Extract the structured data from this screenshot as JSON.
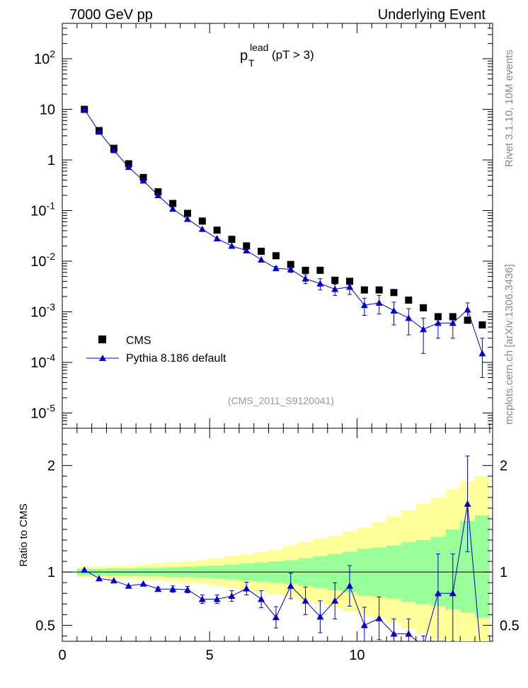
{
  "header": {
    "left": "7000 GeV pp",
    "right": "Underlying Event"
  },
  "side_labels": {
    "rivet": "Rivet 3.1.10,  10M events",
    "mcplots": "mcplots.cern.ch [arXiv:1306.3436]"
  },
  "title": {
    "main": "p",
    "sup": "lead",
    "sub": "T",
    "cut": "(pT >  3)"
  },
  "watermark": "(CMS_2011_S9120041)",
  "ratio_ylabel": "Ratio to CMS",
  "legend": {
    "placement": "lower-left",
    "entries": [
      "CMS",
      "Pythia 8.186 default"
    ]
  },
  "colors": {
    "data": "#000000",
    "mc": "#0000cc",
    "band_inner": "#99ff99",
    "band_outer": "#ffff99",
    "reference_line": "#000000"
  },
  "chart_data": [
    {
      "type": "scatter",
      "panel": "main",
      "yscale": "log",
      "ylim": [
        5e-06,
        500
      ],
      "xlim": [
        0,
        14.6
      ],
      "ytick_labels": [
        "10^-5",
        "10^-4",
        "10^-3",
        "10^-2",
        "10^-1",
        "1",
        "10",
        "10^2"
      ],
      "series": [
        {
          "name": "CMS",
          "marker": "square",
          "x": [
            0.75,
            1.25,
            1.75,
            2.25,
            2.75,
            3.25,
            3.75,
            4.25,
            4.75,
            5.25,
            5.75,
            6.25,
            6.75,
            7.25,
            7.75,
            8.25,
            8.75,
            9.25,
            9.75,
            10.25,
            10.75,
            11.25,
            11.75,
            12.25,
            12.75,
            13.25,
            13.75,
            14.25
          ],
          "y": [
            10,
            3.8,
            1.7,
            0.84,
            0.45,
            0.235,
            0.138,
            0.088,
            0.062,
            0.041,
            0.027,
            0.02,
            0.0157,
            0.0128,
            0.0086,
            0.0066,
            0.0066,
            0.0042,
            0.004,
            0.0027,
            0.0027,
            0.0024,
            0.0017,
            0.0012,
            0.0008,
            0.0008,
            0.00068,
            0.00055
          ]
        },
        {
          "name": "Pythia 8.186 default",
          "marker": "triangle",
          "x": [
            0.75,
            1.25,
            1.75,
            2.25,
            2.75,
            3.25,
            3.75,
            4.25,
            4.75,
            5.25,
            5.75,
            6.25,
            6.75,
            7.25,
            7.75,
            8.25,
            8.75,
            9.25,
            9.75,
            10.25,
            10.75,
            11.25,
            11.75,
            12.25,
            12.75,
            13.25,
            13.75,
            14.25
          ],
          "y": [
            10,
            3.6,
            1.55,
            0.72,
            0.39,
            0.2,
            0.108,
            0.068,
            0.043,
            0.028,
            0.02,
            0.0162,
            0.0107,
            0.0072,
            0.0069,
            0.0045,
            0.0036,
            0.0028,
            0.0031,
            0.00135,
            0.0015,
            0.00105,
            0.00075,
            0.00045,
            0.0006,
            0.0006,
            0.0011,
            0.00015
          ],
          "err_lo": [
            0,
            0,
            0,
            0,
            0,
            0,
            0,
            0,
            0,
            0,
            0,
            0,
            0,
            0.0006,
            0.0009,
            0.0009,
            0.0009,
            0.0007,
            0.0009,
            0.0005,
            0.0006,
            0.0005,
            0.0004,
            0.0003,
            0.0003,
            0.0003,
            0.0005,
            0.0001
          ],
          "err_hi": [
            0,
            0,
            0,
            0,
            0,
            0,
            0,
            0,
            0,
            0,
            0,
            0,
            0,
            0.0006,
            0.0009,
            0.0009,
            0.0009,
            0.0007,
            0.0009,
            0.0005,
            0.0006,
            0.0005,
            0.0004,
            0.0003,
            0.0003,
            0.0003,
            0.0004,
            0.00015
          ]
        }
      ]
    },
    {
      "type": "line",
      "panel": "ratio",
      "ylabel": "Ratio to CMS",
      "ylim": [
        0.35,
        2.35
      ],
      "xlim": [
        0,
        14.6
      ],
      "xticks": [
        0,
        5,
        10
      ],
      "yticks": [
        0.5,
        1,
        2
      ],
      "reference": 1,
      "bands": {
        "x_edges": [
          0.5,
          1,
          1.5,
          2,
          2.5,
          3,
          3.5,
          4,
          4.5,
          5,
          5.5,
          6,
          6.5,
          7,
          7.5,
          8,
          8.5,
          9,
          9.5,
          10,
          10.5,
          11,
          11.5,
          12,
          12.5,
          13,
          13.5,
          14,
          14.5
        ],
        "inner_lo": [
          0.97,
          0.97,
          0.965,
          0.965,
          0.96,
          0.96,
          0.955,
          0.95,
          0.945,
          0.94,
          0.93,
          0.92,
          0.91,
          0.9,
          0.89,
          0.87,
          0.85,
          0.83,
          0.81,
          0.78,
          0.77,
          0.75,
          0.72,
          0.7,
          0.68,
          0.65,
          0.62,
          0.57
        ],
        "inner_hi": [
          1.03,
          1.03,
          1.035,
          1.035,
          1.04,
          1.04,
          1.045,
          1.05,
          1.055,
          1.06,
          1.07,
          1.08,
          1.09,
          1.1,
          1.11,
          1.13,
          1.15,
          1.17,
          1.19,
          1.22,
          1.23,
          1.25,
          1.28,
          1.3,
          1.33,
          1.4,
          1.48,
          1.53
        ],
        "outer_lo": [
          0.95,
          0.95,
          0.94,
          0.94,
          0.93,
          0.92,
          0.91,
          0.9,
          0.89,
          0.87,
          0.85,
          0.83,
          0.81,
          0.79,
          0.76,
          0.73,
          0.7,
          0.67,
          0.63,
          0.59,
          0.56,
          0.52,
          0.47,
          0.42,
          0.37,
          0.35,
          0.35,
          0.35
        ],
        "outer_hi": [
          1.05,
          1.05,
          1.06,
          1.06,
          1.07,
          1.08,
          1.09,
          1.1,
          1.11,
          1.13,
          1.15,
          1.17,
          1.19,
          1.21,
          1.25,
          1.28,
          1.31,
          1.34,
          1.38,
          1.42,
          1.47,
          1.52,
          1.58,
          1.64,
          1.7,
          1.78,
          1.85,
          1.9
        ]
      },
      "series": [
        {
          "name": "Pythia 8.186 default",
          "marker": "triangle",
          "x": [
            0.75,
            1.25,
            1.75,
            2.25,
            2.75,
            3.25,
            3.75,
            4.25,
            4.75,
            5.25,
            5.75,
            6.25,
            6.75,
            7.25,
            7.75,
            8.25,
            8.75,
            9.25,
            9.75,
            10.25,
            10.75,
            11.25,
            11.75,
            12.25,
            12.75,
            13.25,
            13.75,
            14.25
          ],
          "y": [
            1.02,
            0.94,
            0.92,
            0.87,
            0.89,
            0.84,
            0.84,
            0.835,
            0.745,
            0.745,
            0.775,
            0.845,
            0.745,
            0.575,
            0.87,
            0.73,
            0.58,
            0.73,
            0.87,
            0.5,
            0.565,
            0.42,
            0.42,
            0.3,
            0.8,
            0.8,
            1.64,
            0.1
          ],
          "err_lo": [
            0,
            0,
            0,
            0,
            0,
            0.02,
            0.03,
            0.03,
            0.04,
            0.04,
            0.05,
            0.06,
            0.08,
            0.1,
            0.12,
            0.13,
            0.15,
            0.17,
            0.19,
            0.17,
            0.2,
            0.14,
            0.14,
            0.1,
            0.45,
            0.45,
            0.45,
            0.1
          ],
          "err_hi": [
            0,
            0,
            0,
            0,
            0,
            0.02,
            0.03,
            0.03,
            0.04,
            0.04,
            0.05,
            0.06,
            0.08,
            0.1,
            0.12,
            0.13,
            0.15,
            0.17,
            0.19,
            0.17,
            0.2,
            0.14,
            0.14,
            0.1,
            0.37,
            0.37,
            0.45,
            0.1
          ]
        }
      ]
    }
  ]
}
